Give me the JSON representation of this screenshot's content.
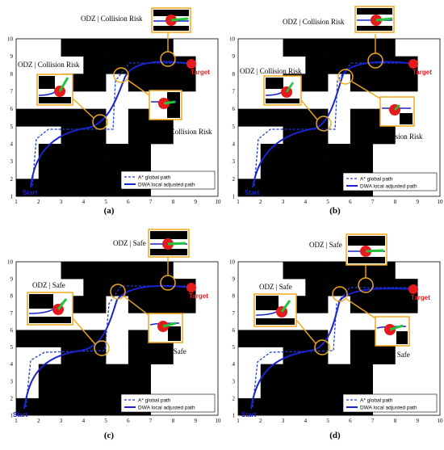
{
  "panels": [
    {
      "id": "a",
      "caption": "(a)",
      "callouts": {
        "top": "ODZ | Collision Risk",
        "left": "ODZ | Collision Risk",
        "right": "ODZ | Collision Risk"
      },
      "start_label": "Start",
      "target_label": "Target",
      "legend": {
        "astar": "A* global path",
        "dwa": "DWA local adjusted path"
      },
      "x_ticks": [
        "1",
        "2",
        "3",
        "4",
        "5",
        "6",
        "7",
        "8",
        "9",
        "10"
      ],
      "y_ticks": [
        "1",
        "2",
        "3",
        "4",
        "5",
        "6",
        "7",
        "8",
        "9",
        "10"
      ]
    },
    {
      "id": "b",
      "caption": "(b)",
      "callouts": {
        "top": "ODZ | Collision Risk",
        "left": "ODZ | Collision Risk",
        "right": "ODZ | Collision Risk"
      },
      "start_label": "Start",
      "target_label": "Target",
      "legend": {
        "astar": "A* global path",
        "dwa": "DWA local adjusted path"
      },
      "x_ticks": [
        "1",
        "2",
        "3",
        "4",
        "5",
        "6",
        "7",
        "8",
        "9",
        "10"
      ],
      "y_ticks": [
        "1",
        "2",
        "3",
        "4",
        "5",
        "6",
        "7",
        "8",
        "9",
        "10"
      ]
    },
    {
      "id": "c",
      "caption": "(c)",
      "callouts": {
        "top": "ODZ | Safe",
        "left": "ODZ | Safe",
        "right": "ODZ | Safe"
      },
      "start_label": "Start",
      "target_label": "Target",
      "legend": {
        "astar": "A* global path",
        "dwa": "DWA local adjusted path"
      },
      "x_ticks": [
        "1",
        "2",
        "3",
        "4",
        "5",
        "6",
        "7",
        "8",
        "9",
        "10"
      ],
      "y_ticks": [
        "1",
        "2",
        "3",
        "4",
        "5",
        "6",
        "7",
        "8",
        "9",
        "10"
      ]
    },
    {
      "id": "d",
      "caption": "(d)",
      "callouts": {
        "top": "ODZ | Safe",
        "left": "ODZ | Safe",
        "right": "ODZ | Safe"
      },
      "start_label": "Start",
      "target_label": "Target",
      "legend": {
        "astar": "A* global path",
        "dwa": "DWA local adjusted path"
      },
      "x_ticks": [
        "1",
        "2",
        "3",
        "4",
        "5",
        "6",
        "7",
        "8",
        "9",
        "10"
      ],
      "y_ticks": [
        "1",
        "2",
        "3",
        "4",
        "5",
        "6",
        "7",
        "8",
        "9",
        "10"
      ]
    }
  ],
  "grid": {
    "obstacle_cells": [
      [
        4,
        10
      ],
      [
        5,
        10
      ],
      [
        6,
        10
      ],
      [
        7,
        10
      ],
      [
        8,
        10
      ],
      [
        5,
        9
      ],
      [
        6,
        9
      ],
      [
        7,
        9
      ],
      [
        8,
        9
      ],
      [
        9,
        9
      ],
      [
        4,
        8
      ],
      [
        5,
        8
      ],
      [
        7,
        8
      ],
      [
        8,
        8
      ],
      [
        9,
        8
      ],
      [
        2,
        6
      ],
      [
        3,
        6
      ],
      [
        4,
        6
      ],
      [
        5,
        6
      ],
      [
        7,
        6
      ],
      [
        8,
        6
      ],
      [
        4,
        5
      ],
      [
        5,
        5
      ],
      [
        7,
        5
      ],
      [
        8,
        5
      ],
      [
        3,
        4
      ],
      [
        4,
        4
      ],
      [
        5,
        4
      ],
      [
        6,
        4
      ],
      [
        7,
        4
      ],
      [
        3,
        3
      ],
      [
        4,
        3
      ],
      [
        5,
        3
      ],
      [
        6,
        3
      ],
      [
        7,
        3
      ],
      [
        2,
        2
      ],
      [
        3,
        2
      ],
      [
        4,
        2
      ],
      [
        5,
        2
      ],
      [
        6,
        2
      ],
      [
        7,
        2
      ]
    ]
  },
  "colors": {
    "obstacle": "#000000",
    "astar": "#1f3fd0",
    "dwa": "#1a24cc",
    "callout": "#f0a818",
    "robot": "#e41a1c",
    "heading": "#22c63a",
    "start": "#1a24cc",
    "target": "#e41a1c"
  }
}
